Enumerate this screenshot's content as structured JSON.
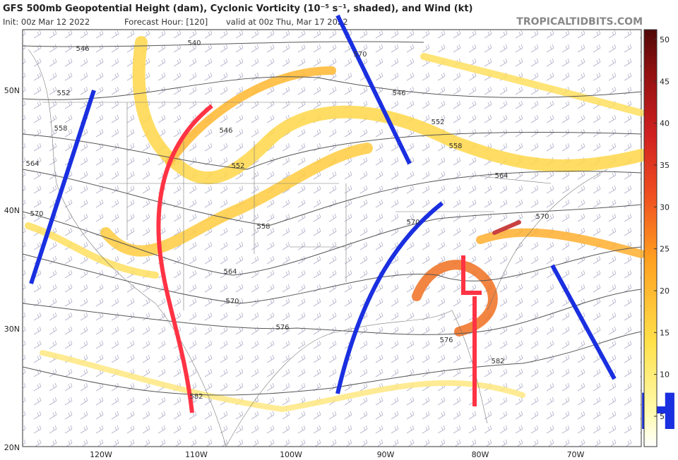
{
  "header": {
    "title": "GFS 500mb Geopotential Height (dam), Cyclonic Vorticity (10⁻⁵ s⁻¹, shaded), and Wind (kt)",
    "init": "Init: 00z Mar 12 2022",
    "forecast_hour": "Forecast Hour: [120]",
    "valid": "valid at 00z Thu, Mar 17 2022",
    "source": "TROPICALTIDBITS.COM"
  },
  "map": {
    "lat_labels": [
      "50N",
      "40N",
      "30N",
      "20N"
    ],
    "lon_labels": [
      "120W",
      "110W",
      "100W",
      "90W",
      "80W",
      "70W"
    ],
    "contour_labels": [
      "546",
      "540",
      "552",
      "558",
      "564",
      "570",
      "546",
      "552",
      "558",
      "564",
      "570",
      "576",
      "570",
      "546",
      "552",
      "558",
      "564",
      "570",
      "570",
      "576",
      "582",
      "582"
    ],
    "annotations": {
      "low": "L",
      "high": "H"
    }
  },
  "colorbar": {
    "ticks": [
      5,
      10,
      15,
      20,
      25,
      30,
      35,
      40,
      45,
      50
    ]
  }
}
